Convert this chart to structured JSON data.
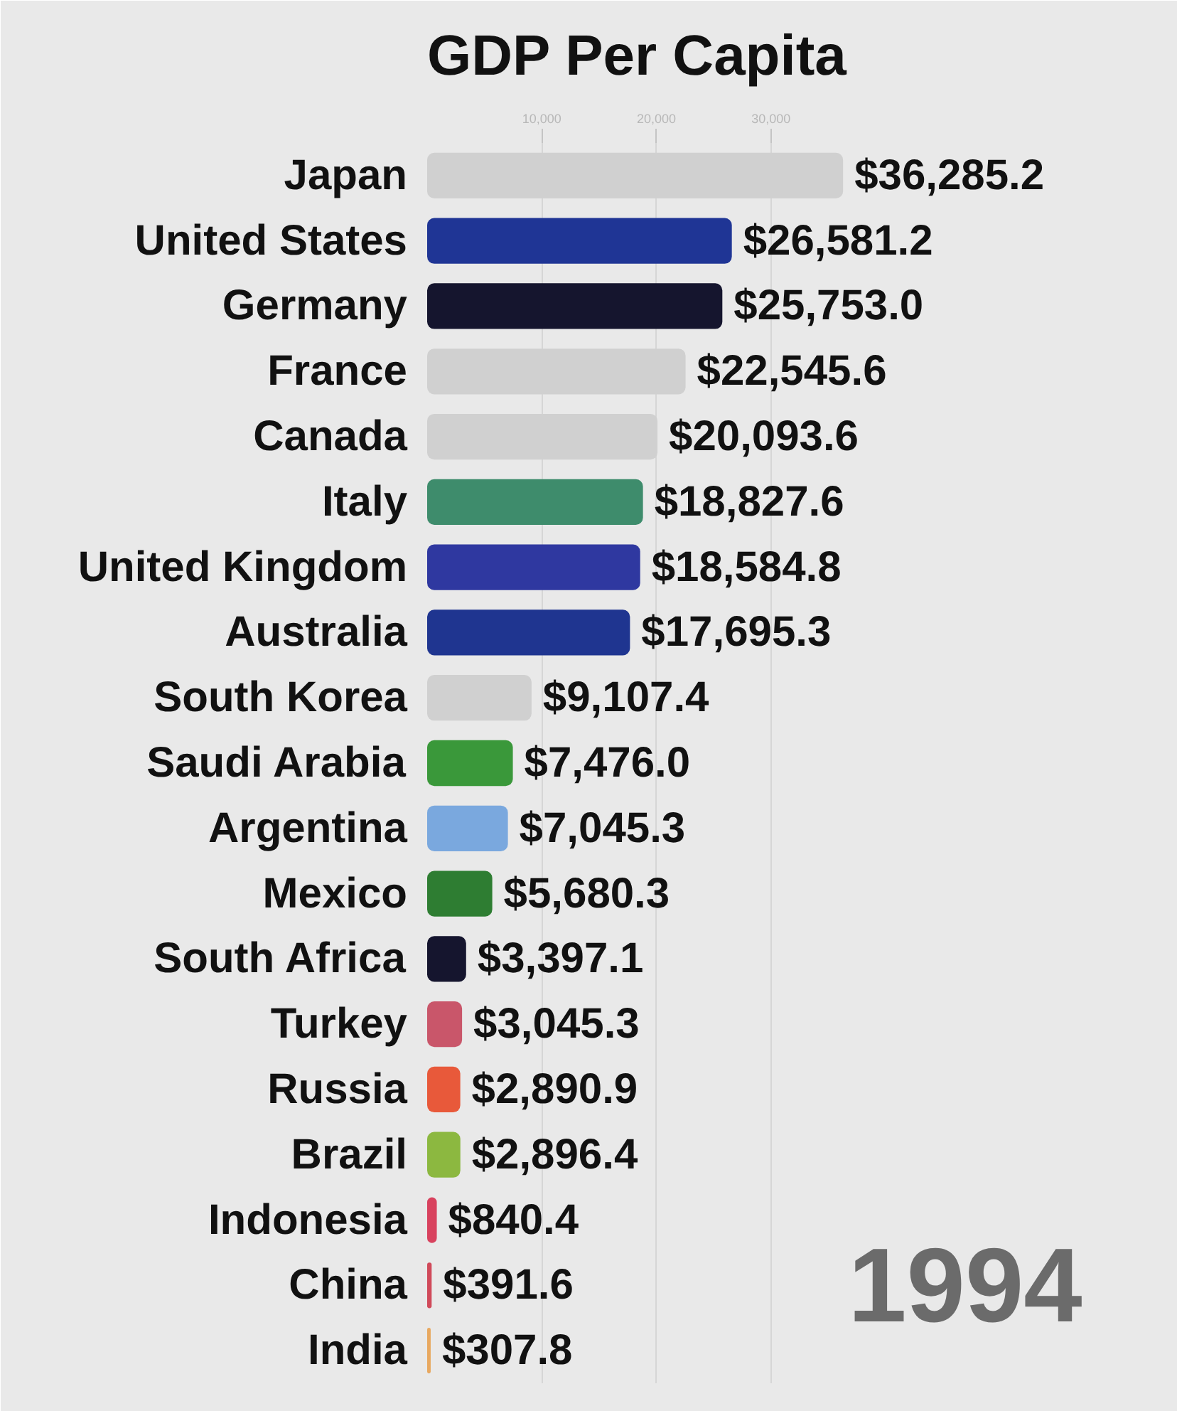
{
  "chart_data": {
    "type": "bar",
    "orientation": "horizontal",
    "title": "GDP Per Capita",
    "categories": [
      "Japan",
      "United States",
      "Germany",
      "France",
      "Canada",
      "Italy",
      "United Kingdom",
      "Australia",
      "South Korea",
      "Saudi Arabia",
      "Argentina",
      "Mexico",
      "South Africa",
      "Turkey",
      "Russia",
      "Brazil",
      "Indonesia",
      "China",
      "India"
    ],
    "values": [
      36285.2,
      26581.2,
      25753.0,
      22545.6,
      20093.6,
      18827.6,
      18584.8,
      17695.3,
      9107.4,
      7476.0,
      7045.3,
      5680.3,
      3397.1,
      3045.3,
      2890.9,
      2896.4,
      840.4,
      391.6,
      307.8
    ],
    "value_labels": [
      "$36,285.2",
      "$26,581.2",
      "$25,753.0",
      "$22,545.6",
      "$20,093.6",
      "$18,827.6",
      "$18,584.8",
      "$17,695.3",
      "$9,107.4",
      "$7,476.0",
      "$7,045.3",
      "$5,680.3",
      "$3,397.1",
      "$3,045.3",
      "$2,890.9",
      "$2,896.4",
      "$840.4",
      "$391.6",
      "$307.8"
    ],
    "colors": [
      "#d0d0d0",
      "#1f3595",
      "#15152e",
      "#d0d0d0",
      "#d0d0d0",
      "#3e8c6c",
      "#2f38a0",
      "#1f3590",
      "#d0d0d0",
      "#3a983a",
      "#7aa8de",
      "#2e7d32",
      "#15152e",
      "#c9566a",
      "#e8593a",
      "#8cb840",
      "#d8425e",
      "#d04a5a",
      "#e8a860"
    ],
    "xlim": [
      0,
      63000
    ],
    "xticks": [
      {
        "value": 10000,
        "label": "10,000"
      },
      {
        "value": 20000,
        "label": "20,000"
      },
      {
        "value": 30000,
        "label": "30,000"
      }
    ],
    "grid": "x",
    "annotations": [
      "1994"
    ]
  }
}
